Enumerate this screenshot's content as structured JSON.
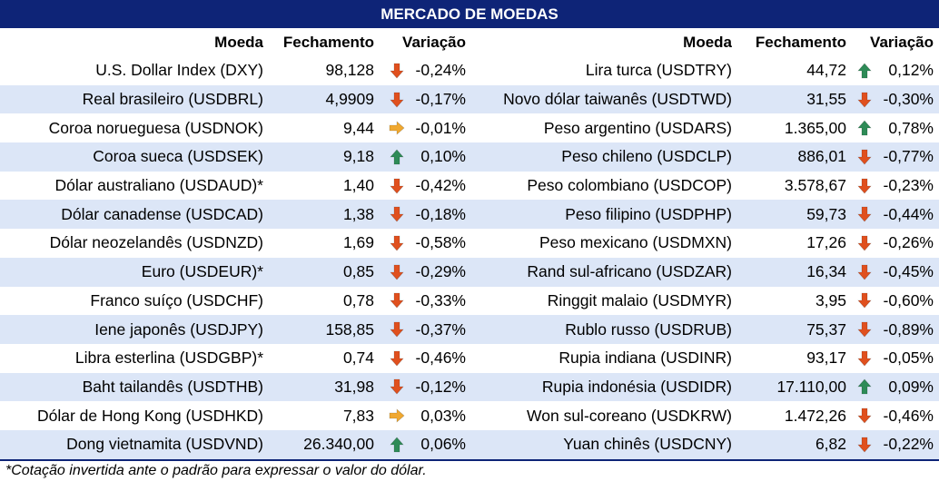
{
  "title": "MERCADO DE MOEDAS",
  "headers": {
    "currency": "Moeda",
    "close": "Fechamento",
    "change": "Variação"
  },
  "colors": {
    "header_bg": "#0e2477",
    "row_alt": "#dce6f7",
    "down": "#e0501e",
    "up": "#2e8b57",
    "flat": "#f0a830"
  },
  "left_rows": [
    {
      "name": "U.S. Dollar Index (DXY)",
      "close": "98,128",
      "dir": "down",
      "change": "-0,24%"
    },
    {
      "name": "Real brasileiro (USDBRL)",
      "close": "4,9909",
      "dir": "down",
      "change": "-0,17%"
    },
    {
      "name": "Coroa norueguesa (USDNOK)",
      "close": "9,44",
      "dir": "flat",
      "change": "-0,01%"
    },
    {
      "name": "Coroa sueca (USDSEK)",
      "close": "9,18",
      "dir": "up",
      "change": "0,10%"
    },
    {
      "name": "Dólar australiano (USDAUD)*",
      "close": "1,40",
      "dir": "down",
      "change": "-0,42%"
    },
    {
      "name": "Dólar canadense (USDCAD)",
      "close": "1,38",
      "dir": "down",
      "change": "-0,18%"
    },
    {
      "name": "Dólar neozelandês (USDNZD)",
      "close": "1,69",
      "dir": "down",
      "change": "-0,58%"
    },
    {
      "name": "Euro (USDEUR)*",
      "close": "0,85",
      "dir": "down",
      "change": "-0,29%"
    },
    {
      "name": "Franco suíço (USDCHF)",
      "close": "0,78",
      "dir": "down",
      "change": "-0,33%"
    },
    {
      "name": "Iene japonês (USDJPY)",
      "close": "158,85",
      "dir": "down",
      "change": "-0,37%"
    },
    {
      "name": "Libra esterlina (USDGBP)*",
      "close": "0,74",
      "dir": "down",
      "change": "-0,46%"
    },
    {
      "name": "Baht tailandês (USDTHB)",
      "close": "31,98",
      "dir": "down",
      "change": "-0,12%"
    },
    {
      "name": "Dólar de Hong Kong (USDHKD)",
      "close": "7,83",
      "dir": "flat",
      "change": "0,03%"
    },
    {
      "name": "Dong vietnamita (USDVND)",
      "close": "26.340,00",
      "dir": "up",
      "change": "0,06%"
    }
  ],
  "right_rows": [
    {
      "name": "Lira turca (USDTRY)",
      "close": "44,72",
      "dir": "up",
      "change": "0,12%"
    },
    {
      "name": "Novo dólar taiwanês (USDTWD)",
      "close": "31,55",
      "dir": "down",
      "change": "-0,30%"
    },
    {
      "name": "Peso argentino (USDARS)",
      "close": "1.365,00",
      "dir": "up",
      "change": "0,78%"
    },
    {
      "name": "Peso chileno (USDCLP)",
      "close": "886,01",
      "dir": "down",
      "change": "-0,77%"
    },
    {
      "name": "Peso colombiano (USDCOP)",
      "close": "3.578,67",
      "dir": "down",
      "change": "-0,23%"
    },
    {
      "name": "Peso filipino (USDPHP)",
      "close": "59,73",
      "dir": "down",
      "change": "-0,44%"
    },
    {
      "name": "Peso mexicano (USDMXN)",
      "close": "17,26",
      "dir": "down",
      "change": "-0,26%"
    },
    {
      "name": "Rand sul-africano (USDZAR)",
      "close": "16,34",
      "dir": "down",
      "change": "-0,45%"
    },
    {
      "name": "Ringgit malaio (USDMYR)",
      "close": "3,95",
      "dir": "down",
      "change": "-0,60%"
    },
    {
      "name": "Rublo russo (USDRUB)",
      "close": "75,37",
      "dir": "down",
      "change": "-0,89%"
    },
    {
      "name": "Rupia indiana (USDINR)",
      "close": "93,17",
      "dir": "down",
      "change": "-0,05%"
    },
    {
      "name": "Rupia indonésia (USDIDR)",
      "close": "17.110,00",
      "dir": "up",
      "change": "0,09%"
    },
    {
      "name": "Won sul-coreano (USDKRW)",
      "close": "1.472,26",
      "dir": "down",
      "change": "-0,46%"
    },
    {
      "name": "Yuan chinês (USDCNY)",
      "close": "6,82",
      "dir": "down",
      "change": "-0,22%"
    }
  ],
  "footnote": "*Cotação invertida ante o padrão para expressar o valor do dólar."
}
